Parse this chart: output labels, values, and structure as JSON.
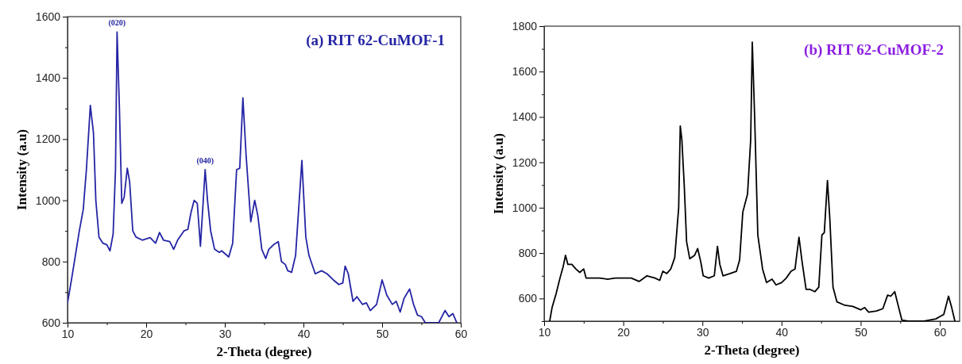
{
  "chart_data": [
    {
      "type": "line",
      "title": "(a) RIT 62-CuMOF-1",
      "xlabel": "2-Theta (degree)",
      "ylabel": "Intensity (a.u)",
      "xlim": [
        10,
        60
      ],
      "ylim": [
        600,
        1600
      ],
      "xticks": [
        10,
        {
          "value": 15,
          "label": null
        },
        20,
        {
          "value": 25,
          "label": null
        },
        30,
        {
          "value": 35,
          "label": null
        },
        40,
        {
          "value": 45,
          "label": null
        },
        50,
        {
          "value": 55,
          "label": null
        },
        60
      ],
      "yticks": [
        600,
        {
          "value": 700,
          "label": null
        },
        800,
        {
          "value": 900,
          "label": null
        },
        1000,
        {
          "value": 1100,
          "label": null
        },
        1200,
        {
          "value": 1300,
          "label": null
        },
        1400,
        {
          "value": 1500,
          "label": null
        },
        1600
      ],
      "marker": "none",
      "line_style": "solid",
      "annotations": [
        {
          "text": "(020)",
          "x": 16.3,
          "y": 1550
        },
        {
          "text": "(040)",
          "x": 27.5,
          "y": 1100
        }
      ],
      "series": [
        {
          "color": "#2525a5",
          "x": [
            10,
            10.5,
            11,
            11.5,
            12,
            12.4,
            12.9,
            13.3,
            13.6,
            14,
            14.5,
            15,
            15.4,
            15.8,
            16.1,
            16.3,
            16.6,
            16.9,
            17.2,
            17.6,
            17.9,
            18.3,
            18.7,
            19.5,
            20.5,
            21.2,
            21.7,
            22.2,
            23,
            23.5,
            24,
            24.8,
            25.3,
            25.7,
            26.1,
            26.5,
            26.9,
            27.5,
            27.8,
            28.2,
            28.7,
            29.3,
            29.6,
            30.5,
            31,
            31.5,
            31.9,
            32.3,
            32.7,
            33.3,
            33.8,
            34.2,
            34.7,
            35.2,
            35.6,
            36.2,
            36.8,
            37.2,
            37.7,
            38,
            38.5,
            39,
            39.8,
            40.3,
            40.7,
            41.5,
            42.3,
            43,
            43.8,
            44.5,
            45,
            45.3,
            45.7,
            46.3,
            46.8,
            47.5,
            48,
            48.5,
            49.3,
            50,
            50.6,
            51.3,
            51.8,
            52.3,
            52.8,
            53.5,
            54,
            54.5,
            55,
            55.5,
            57.2,
            58,
            58.5,
            59,
            59.5
          ],
          "values": [
            665,
            740,
            820,
            900,
            970,
            1100,
            1310,
            1220,
            1000,
            880,
            860,
            855,
            835,
            890,
            1100,
            1550,
            1300,
            990,
            1010,
            1105,
            1060,
            900,
            880,
            870,
            878,
            860,
            895,
            870,
            865,
            840,
            870,
            900,
            905,
            960,
            1000,
            990,
            850,
            1100,
            1000,
            900,
            840,
            830,
            835,
            815,
            860,
            1100,
            1105,
            1335,
            1150,
            930,
            1000,
            950,
            840,
            810,
            840,
            855,
            865,
            800,
            790,
            770,
            765,
            820,
            1130,
            880,
            820,
            760,
            770,
            760,
            740,
            725,
            730,
            785,
            760,
            670,
            685,
            660,
            665,
            640,
            660,
            740,
            690,
            660,
            670,
            635,
            680,
            710,
            660,
            625,
            620,
            600,
            600,
            640,
            620,
            630,
            600
          ]
        }
      ]
    },
    {
      "type": "line",
      "title": "(b) RIT 62-CuMOF-2",
      "xlabel": "2-Theta (degree)",
      "ylabel": "Intensity (a.u)",
      "xlim": [
        10,
        62.5
      ],
      "ylim": [
        500,
        1800
      ],
      "xticks": [
        10,
        {
          "value": 15,
          "label": null
        },
        20,
        {
          "value": 25,
          "label": null
        },
        30,
        {
          "value": 35,
          "label": null
        },
        40,
        {
          "value": 45,
          "label": null
        },
        50,
        {
          "value": 55,
          "label": null
        },
        60
      ],
      "yticks": [
        {
          "value": 500,
          "label": null
        },
        600,
        {
          "value": 700,
          "label": null
        },
        800,
        {
          "value": 900,
          "label": null
        },
        1000,
        {
          "value": 1100,
          "label": null
        },
        1200,
        {
          "value": 1300,
          "label": null
        },
        1400,
        {
          "value": 1500,
          "label": null
        },
        1600,
        {
          "value": 1700,
          "label": null
        },
        1800
      ],
      "marker": "none",
      "line_style": "solid",
      "series": [
        {
          "color": "#000000",
          "x": [
            10.7,
            11,
            11.5,
            12,
            12.4,
            12.7,
            13,
            13.5,
            14,
            14.5,
            15,
            15.3,
            16,
            17,
            18,
            19,
            20,
            21,
            22,
            23,
            24,
            24.6,
            25,
            25.5,
            26,
            26.5,
            27,
            27.2,
            27.4,
            27.7,
            28,
            28.4,
            29,
            29.4,
            29.8,
            30.1,
            30.8,
            31.5,
            31.9,
            32.2,
            32.6,
            33.5,
            34.3,
            34.7,
            35.1,
            35.7,
            36.1,
            36.3,
            36.6,
            37,
            37.6,
            38.1,
            38.8,
            39.3,
            40,
            40.6,
            41.2,
            41.7,
            42.2,
            42.6,
            43.1,
            43.6,
            44.2,
            44.7,
            45.1,
            45.4,
            45.8,
            46.1,
            46.5,
            47,
            48,
            49,
            50,
            50.5,
            51,
            52,
            52.8,
            53.4,
            53.8,
            54.3,
            54.8,
            55.2,
            56,
            58,
            59.5,
            60,
            60.5,
            61.1,
            61.5,
            61.9
          ],
          "values": [
            500,
            560,
            620,
            690,
            740,
            790,
            750,
            750,
            730,
            715,
            730,
            690,
            690,
            690,
            685,
            690,
            690,
            690,
            675,
            700,
            690,
            680,
            720,
            710,
            730,
            780,
            1000,
            1360,
            1300,
            1100,
            850,
            775,
            790,
            820,
            760,
            700,
            690,
            700,
            830,
            750,
            700,
            710,
            720,
            770,
            980,
            1060,
            1300,
            1730,
            1400,
            880,
            730,
            670,
            685,
            660,
            670,
            690,
            720,
            730,
            870,
            760,
            640,
            640,
            630,
            650,
            880,
            890,
            1120,
            950,
            650,
            585,
            570,
            565,
            550,
            560,
            540,
            545,
            555,
            615,
            610,
            630,
            560,
            505,
            500,
            500,
            510,
            520,
            530,
            610,
            560,
            500
          ]
        }
      ]
    }
  ]
}
